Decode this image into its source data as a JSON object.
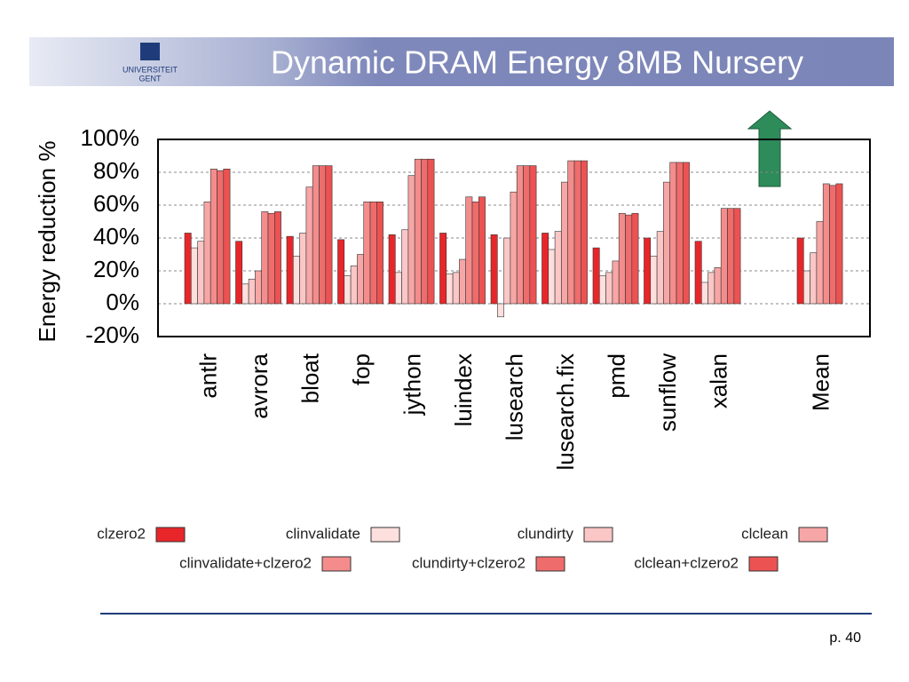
{
  "logo": [
    "UNIVERSITEIT",
    "GENT"
  ],
  "page_number": "p. 40",
  "chart_data": {
    "type": "bar",
    "title": "Dynamic DRAM Energy 8MB Nursery",
    "y_label": "Energy reduction %",
    "categories": [
      "antlr",
      "avrora",
      "bloat",
      "fop",
      "jython",
      "luindex",
      "lusearch",
      "lusearch.fix",
      "pmd",
      "sunflow",
      "xalan",
      null,
      "Mean"
    ],
    "series": [
      {
        "name": "clzero2",
        "color": "#e8262a",
        "values": [
          43,
          38,
          41,
          39,
          42,
          43,
          42,
          43,
          34,
          40,
          38,
          null,
          40
        ]
      },
      {
        "name": "clinvalidate",
        "color": "#fde0de",
        "values": [
          34,
          12,
          29,
          17,
          19,
          18,
          -8,
          33,
          17,
          29,
          13,
          null,
          20
        ]
      },
      {
        "name": "clundirty",
        "color": "#fbc6c6",
        "values": [
          38,
          15,
          43,
          23,
          45,
          19,
          40,
          44,
          19,
          44,
          19,
          null,
          31
        ]
      },
      {
        "name": "clclean",
        "color": "#f7a6a6",
        "values": [
          62,
          20,
          71,
          30,
          78,
          27,
          68,
          74,
          26,
          74,
          22,
          null,
          50
        ]
      },
      {
        "name": "clinvalidate+clzero2",
        "color": "#f48c8c",
        "values": [
          82,
          56,
          84,
          62,
          88,
          65,
          84,
          87,
          55,
          86,
          58,
          null,
          73
        ]
      },
      {
        "name": "clundirty+clzero2",
        "color": "#ef6c6c",
        "values": [
          81,
          55,
          84,
          62,
          88,
          62,
          84,
          87,
          54,
          86,
          58,
          null,
          72
        ]
      },
      {
        "name": "clclean+clzero2",
        "color": "#ec5252",
        "values": [
          82,
          56,
          84,
          62,
          88,
          65,
          84,
          87,
          55,
          86,
          58,
          null,
          73
        ]
      }
    ],
    "ylim": [
      -20,
      100
    ],
    "yticks": [
      {
        "value": -20,
        "label": "-20%"
      },
      {
        "value": 0,
        "label": "0%"
      },
      {
        "value": 20,
        "label": "20%"
      },
      {
        "value": 40,
        "label": "40%"
      },
      {
        "value": 60,
        "label": "60%"
      },
      {
        "value": 80,
        "label": "80%"
      },
      {
        "value": 100,
        "label": "100%"
      }
    ],
    "grid": true
  }
}
